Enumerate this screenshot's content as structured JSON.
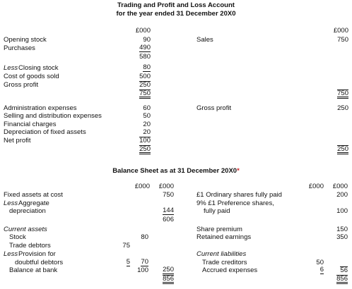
{
  "trading_account": {
    "title": "Trading and Profit and Loss Account",
    "subtitle": "for the year ended 31 December 20X0",
    "units": [
      "£000",
      "£000"
    ],
    "debits": [
      {
        "label": "Opening stock",
        "value": 90
      },
      {
        "label": "Purchases",
        "value": 490
      },
      {
        "value": 580
      },
      {
        "prefix": "Less",
        "label": "Closing stock",
        "value": 80
      },
      {
        "label": "Cost of goods sold",
        "value": 500
      },
      {
        "label": "Gross profit",
        "value": 250
      },
      {
        "value": 750
      },
      {
        "label": "Administration expenses",
        "value": 60
      },
      {
        "label": "Selling and distribution expenses",
        "value": 50
      },
      {
        "label": "Financial charges",
        "value": 20
      },
      {
        "label": "Depreciation of fixed assets",
        "value": 20
      },
      {
        "label": "Net profit",
        "value": 100
      },
      {
        "value": 250
      }
    ],
    "credits": [
      {
        "label": "Sales",
        "value": 750
      },
      {
        "value": 750
      },
      {
        "label": "Gross profit",
        "value": 250
      },
      {
        "value": 250
      }
    ]
  },
  "balance_sheet": {
    "title": "Balance Sheet as at 31 December 20X0",
    "footnote_marker": "*",
    "units": [
      "£000",
      "£000",
      "£000",
      "£000"
    ],
    "assets": [
      {
        "label": "Fixed assets at cost",
        "amount": 750
      },
      {
        "prefix": "Less",
        "label": "Aggregate"
      },
      {
        "label": "depreciation",
        "amount": 144
      },
      {
        "amount": 606
      },
      {
        "label": "Current assets"
      },
      {
        "label": "Stock",
        "subtotal": 80
      },
      {
        "label": "Trade debtors",
        "gross": 75
      },
      {
        "prefix": "Less",
        "label": "Provision for"
      },
      {
        "label": "doubtful debtors",
        "gross": 5,
        "subtotal": 70
      },
      {
        "label": "Balance at bank",
        "subtotal": 100,
        "amount": 250
      },
      {
        "amount": 856
      }
    ],
    "liabilities": [
      {
        "label": "£1 Ordinary shares fully paid",
        "amount": 200
      },
      {
        "label": "9% £1 Preference shares,"
      },
      {
        "label": "fully paid",
        "amount": 100
      },
      {
        "label": "Share premium",
        "amount": 150
      },
      {
        "label": "Retained earnings",
        "amount": 350
      },
      {
        "label": "Current liabilities"
      },
      {
        "label": "Trade creditors",
        "subtotal": 50
      },
      {
        "label": "Accrued expenses",
        "subtotal": 6,
        "amount": 56
      },
      {
        "amount": 856
      }
    ]
  }
}
